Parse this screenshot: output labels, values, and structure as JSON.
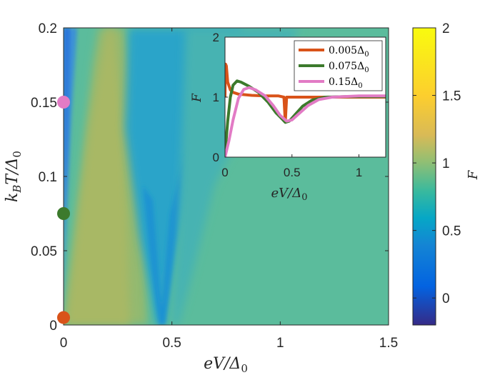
{
  "chart_data": [
    {
      "type": "heatmap",
      "title": "",
      "xlabel": "eV/Δ",
      "xlabel_sub": "0",
      "ylabel": "k",
      "ylabel_sub_b": "B",
      "ylabel_mid": "T/Δ",
      "ylabel_sub_0": "0",
      "xlim": [
        0,
        1.5
      ],
      "ylim": [
        0,
        0.2
      ],
      "xticks": [
        0,
        0.5,
        1,
        1.5
      ],
      "xtick_labels": [
        "0",
        "0.5",
        "1",
        "1.5"
      ],
      "yticks": [
        0,
        0.05,
        0.1,
        0.15,
        0.2
      ],
      "ytick_labels": [
        "0",
        "0.05",
        "0.1",
        "0.15",
        "0.2"
      ],
      "colorbar": {
        "label": "F",
        "clim": [
          -0.2,
          2
        ],
        "ticks": [
          0,
          0.5,
          1,
          1.5,
          2
        ],
        "tick_labels": [
          "0",
          "0.5",
          "1",
          "1.5",
          "2"
        ],
        "colormap": "parula"
      },
      "features": {
        "low_F_edge_at_eV": 0,
        "gap_dip_eV": 0.45,
        "peak_F_max": 1.5,
        "saturation_F": 1.0
      },
      "markers": [
        {
          "x": 0,
          "y": 0.005,
          "color": "#D95319",
          "name": "marker-T-0.005"
        },
        {
          "x": 0,
          "y": 0.075,
          "color": "#3C7A2C",
          "name": "marker-T-0.075"
        },
        {
          "x": 0,
          "y": 0.15,
          "color": "#E27BC5",
          "name": "marker-T-0.15"
        }
      ]
    },
    {
      "type": "line",
      "title": "",
      "xlabel": "eV/Δ",
      "xlabel_sub": "0",
      "ylabel": "F",
      "xlim": [
        0,
        1.2
      ],
      "ylim": [
        0,
        2
      ],
      "xticks": [
        0,
        0.5,
        1
      ],
      "xtick_labels": [
        "0",
        "0.5",
        "1"
      ],
      "yticks": [
        0,
        1,
        2
      ],
      "ytick_labels": [
        "0",
        "1",
        "2"
      ],
      "legend_position": "top-right",
      "series": [
        {
          "name": "0.005Δ",
          "name_sub": "0",
          "color": "#D95319",
          "points": [
            [
              0,
              1.0
            ],
            [
              0.004,
              1.55
            ],
            [
              0.01,
              1.52
            ],
            [
              0.02,
              1.25
            ],
            [
              0.04,
              1.12
            ],
            [
              0.06,
              1.08
            ],
            [
              0.1,
              1.05
            ],
            [
              0.2,
              1.03
            ],
            [
              0.3,
              1.02
            ],
            [
              0.4,
              1.02
            ],
            [
              0.44,
              1.0
            ],
            [
              0.449,
              0.62
            ],
            [
              0.451,
              0.62
            ],
            [
              0.46,
              1.0
            ],
            [
              0.5,
              1.0
            ],
            [
              0.7,
              1.0
            ],
            [
              1.0,
              1.0
            ],
            [
              1.2,
              1.0
            ]
          ]
        },
        {
          "name": "0.075Δ",
          "name_sub": "0",
          "color": "#3C7A2C",
          "points": [
            [
              0,
              0.05
            ],
            [
              0.02,
              0.6
            ],
            [
              0.04,
              1.0
            ],
            [
              0.06,
              1.2
            ],
            [
              0.09,
              1.27
            ],
            [
              0.12,
              1.25
            ],
            [
              0.18,
              1.18
            ],
            [
              0.25,
              1.08
            ],
            [
              0.32,
              0.92
            ],
            [
              0.38,
              0.74
            ],
            [
              0.42,
              0.65
            ],
            [
              0.45,
              0.58
            ],
            [
              0.48,
              0.6
            ],
            [
              0.52,
              0.7
            ],
            [
              0.58,
              0.85
            ],
            [
              0.65,
              0.95
            ],
            [
              0.75,
              1.0
            ],
            [
              0.9,
              1.01
            ],
            [
              1.2,
              1.01
            ]
          ]
        },
        {
          "name": "0.15Δ",
          "name_sub": "0",
          "color": "#E27BC5",
          "points": [
            [
              0,
              0.0
            ],
            [
              0.03,
              0.28
            ],
            [
              0.06,
              0.62
            ],
            [
              0.1,
              0.98
            ],
            [
              0.14,
              1.13
            ],
            [
              0.18,
              1.16
            ],
            [
              0.23,
              1.12
            ],
            [
              0.3,
              1.02
            ],
            [
              0.36,
              0.86
            ],
            [
              0.41,
              0.7
            ],
            [
              0.46,
              0.6
            ],
            [
              0.5,
              0.62
            ],
            [
              0.55,
              0.72
            ],
            [
              0.62,
              0.86
            ],
            [
              0.7,
              0.96
            ],
            [
              0.8,
              1.0
            ],
            [
              1.0,
              1.02
            ],
            [
              1.2,
              1.02
            ]
          ]
        }
      ]
    }
  ]
}
